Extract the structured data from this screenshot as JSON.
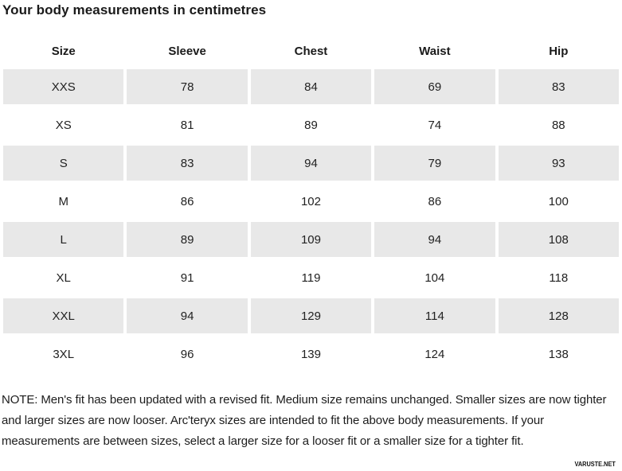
{
  "title": "Your body measurements in centimetres",
  "chart_data": {
    "type": "table",
    "title": "Your body measurements in centimetres",
    "columns": [
      "Size",
      "Sleeve",
      "Chest",
      "Waist",
      "Hip"
    ],
    "rows": [
      {
        "cells": [
          "XXS",
          "78",
          "84",
          "69",
          "83"
        ],
        "striped": true
      },
      {
        "cells": [
          "XS",
          "81",
          "89",
          "74",
          "88"
        ],
        "striped": false
      },
      {
        "cells": [
          "S",
          "83",
          "94",
          "79",
          "93"
        ],
        "striped": true
      },
      {
        "cells": [
          "M",
          "86",
          "102",
          "86",
          "100"
        ],
        "striped": false
      },
      {
        "cells": [
          "L",
          "89",
          "109",
          "94",
          "108"
        ],
        "striped": true
      },
      {
        "cells": [
          "XL",
          "91",
          "119",
          "104",
          "118"
        ],
        "striped": false
      },
      {
        "cells": [
          "XXL",
          "94",
          "129",
          "114",
          "128"
        ],
        "striped": true
      },
      {
        "cells": [
          "3XL",
          "96",
          "139",
          "124",
          "138"
        ],
        "striped": false
      }
    ]
  },
  "note": "NOTE: Men's fit has been updated with a revised fit. Medium size remains unchanged. Smaller sizes are now tighter and larger sizes are now looser. Arc'teryx sizes are intended to fit the above body measurements. If your measurements are between sizes, select a larger size for a looser fit or a smaller size for a tighter fit.",
  "watermark": "VARUSTE.NET",
  "colors": {
    "stripe": "#e8e8e8",
    "text": "#1c1c1c",
    "background": "#ffffff"
  }
}
